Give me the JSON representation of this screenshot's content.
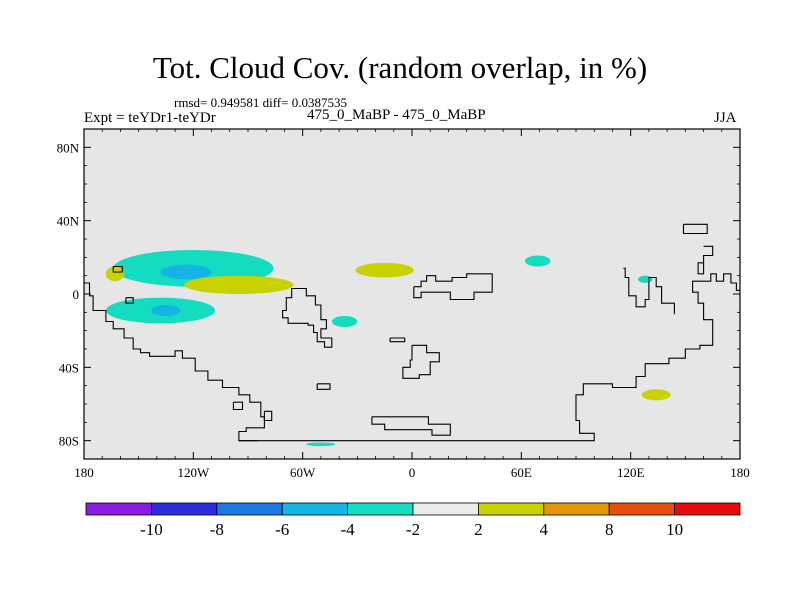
{
  "header": {
    "title": "Tot. Cloud Cov. (random overlap, in %)",
    "stats": "rmsd= 0.949581 diff= 0.0387535",
    "expt": "Expt = teYDr1-teYDr",
    "subtitle": "475_0_MaBP - 475_0_MaBP",
    "season": "JJA"
  },
  "chart_data": {
    "type": "heatmap",
    "title": "Tot. Cloud Cov. (random overlap, in %)",
    "projection": "cylindrical-equidistant",
    "xlim": [
      -180,
      180
    ],
    "ylim": [
      -90,
      90
    ],
    "x_ticks": [
      {
        "value": -180,
        "label": "180"
      },
      {
        "value": -120,
        "label": "120W"
      },
      {
        "value": -60,
        "label": "60W"
      },
      {
        "value": 0,
        "label": "0"
      },
      {
        "value": 60,
        "label": "60E"
      },
      {
        "value": 120,
        "label": "120E"
      },
      {
        "value": 180,
        "label": "180"
      }
    ],
    "y_ticks": [
      {
        "value": 80,
        "label": "80N"
      },
      {
        "value": 40,
        "label": "40N"
      },
      {
        "value": 0,
        "label": "0"
      },
      {
        "value": -40,
        "label": "40S"
      },
      {
        "value": -80,
        "label": "80S"
      }
    ],
    "background_color": "#e6e6e6",
    "colorbar": {
      "bins": [
        {
          "lo": null,
          "hi": -10,
          "color": "#8a1ee0"
        },
        {
          "lo": -10,
          "hi": -8,
          "color": "#2c2ce0"
        },
        {
          "lo": -8,
          "hi": -6,
          "color": "#1e78e6"
        },
        {
          "lo": -6,
          "hi": -4,
          "color": "#14b4e6"
        },
        {
          "lo": -4,
          "hi": -2,
          "color": "#14dcc0"
        },
        {
          "lo": -2,
          "hi": 2,
          "color": "#ebebeb"
        },
        {
          "lo": 2,
          "hi": 4,
          "color": "#c8d200"
        },
        {
          "lo": 4,
          "hi": 8,
          "color": "#e6960a"
        },
        {
          "lo": 8,
          "hi": 10,
          "color": "#e6500a"
        },
        {
          "lo": 10,
          "hi": null,
          "color": "#e60a0a"
        }
      ],
      "labels": [
        "-10",
        "-8",
        "-6",
        "-4",
        "-2",
        "2",
        "4",
        "8",
        "10"
      ]
    },
    "anomaly_regions": [
      {
        "name": "central-pacific-tropical-north",
        "center": [
          -120,
          14
        ],
        "extent": [
          44,
          10
        ],
        "value": -4
      },
      {
        "name": "central-pacific-tropical-north-core",
        "center": [
          -124,
          12
        ],
        "extent": [
          14,
          4
        ],
        "value": -6
      },
      {
        "name": "east-pacific-south",
        "center": [
          -138,
          -9
        ],
        "extent": [
          30,
          7
        ],
        "value": -4
      },
      {
        "name": "east-pacific-south-core",
        "center": [
          -135,
          -9
        ],
        "extent": [
          8,
          3
        ],
        "value": -6
      },
      {
        "name": "west-pacific-north-patch",
        "center": [
          -163,
          11
        ],
        "extent": [
          5,
          4
        ],
        "value": 3
      },
      {
        "name": "central-pacific-equatorial",
        "center": [
          -95,
          5
        ],
        "extent": [
          30,
          5
        ],
        "value": 3
      },
      {
        "name": "central-atlantic-north",
        "center": [
          -15,
          13
        ],
        "extent": [
          16,
          4
        ],
        "value": 3
      },
      {
        "name": "south-atlantic-subtropical",
        "center": [
          -37,
          -15
        ],
        "extent": [
          7,
          3
        ],
        "value": -3
      },
      {
        "name": "north-africa",
        "center": [
          69,
          18
        ],
        "extent": [
          7,
          3
        ],
        "value": -3
      },
      {
        "name": "west-pacific-subtropics",
        "center": [
          128,
          8
        ],
        "extent": [
          4,
          2
        ],
        "value": -3
      },
      {
        "name": "australia-south",
        "center": [
          134,
          -55
        ],
        "extent": [
          8,
          3
        ],
        "value": 3
      },
      {
        "name": "southern-ocean-arc",
        "center": [
          -50,
          -82
        ],
        "extent": [
          8,
          1
        ],
        "value": -3
      }
    ],
    "land_outlines": [
      {
        "name": "north-america-pacific-coast",
        "coastline": [
          [
            -180,
            6
          ],
          [
            -177,
            6
          ],
          [
            -177,
            -1
          ],
          [
            -175,
            -1
          ],
          [
            -175,
            -9
          ],
          [
            -168,
            -9
          ],
          [
            -168,
            -15
          ],
          [
            -164,
            -15
          ],
          [
            -164,
            -19
          ],
          [
            -158,
            -19
          ],
          [
            -158,
            -24
          ],
          [
            -153,
            -24
          ],
          [
            -153,
            -30
          ],
          [
            -149,
            -30
          ],
          [
            -149,
            -32
          ],
          [
            -144,
            -32
          ],
          [
            -144,
            -34
          ],
          [
            -130,
            -34
          ],
          [
            -130,
            -31
          ],
          [
            -126,
            -31
          ],
          [
            -126,
            -35
          ],
          [
            -119,
            -35
          ],
          [
            -119,
            -42
          ],
          [
            -112,
            -42
          ],
          [
            -112,
            -47
          ],
          [
            -104,
            -47
          ],
          [
            -104,
            -51
          ],
          [
            -95,
            -51
          ],
          [
            -95,
            -55
          ],
          [
            -89,
            -55
          ],
          [
            -89,
            -59
          ],
          [
            -83,
            -59
          ],
          [
            -83,
            -67
          ],
          [
            -81,
            -67
          ],
          [
            -81,
            -73
          ],
          [
            -91,
            -73
          ],
          [
            -91,
            -75
          ],
          [
            -95,
            -75
          ],
          [
            -95,
            -80
          ],
          [
            -85,
            -80
          ]
        ]
      },
      {
        "name": "central-america",
        "coastline": [
          [
            -62,
            -16
          ],
          [
            -57,
            -16
          ],
          [
            -57,
            -17
          ],
          [
            -54,
            -17
          ],
          [
            -54,
            -21
          ],
          [
            -52,
            -21
          ],
          [
            -52,
            -26
          ],
          [
            -48,
            -26
          ],
          [
            -48,
            -29
          ],
          [
            -44,
            -29
          ],
          [
            -44,
            -24
          ],
          [
            -50,
            -24
          ],
          [
            -50,
            -19
          ],
          [
            -47,
            -19
          ],
          [
            -47,
            -14
          ],
          [
            -50,
            -14
          ],
          [
            -50,
            -6
          ],
          [
            -53,
            -6
          ],
          [
            -53,
            -1
          ],
          [
            -58,
            -1
          ],
          [
            -58,
            3
          ],
          [
            -66,
            3
          ],
          [
            -66,
            -2
          ],
          [
            -69,
            -2
          ],
          [
            -69,
            -9
          ],
          [
            -71,
            -9
          ],
          [
            -71,
            -13
          ],
          [
            -68,
            -13
          ],
          [
            -68,
            -16
          ],
          [
            -62,
            -16
          ]
        ]
      },
      {
        "name": "atlantic-islands",
        "coastline": [
          [
            -12,
            -24
          ],
          [
            -12,
            -26
          ],
          [
            -4,
            -26
          ],
          [
            -4,
            -24
          ],
          [
            -12,
            -24
          ]
        ]
      },
      {
        "name": "southern-atlantic-island",
        "coastline": [
          [
            -52,
            -49
          ],
          [
            -52,
            -52
          ],
          [
            -45,
            -52
          ],
          [
            -45,
            -49
          ],
          [
            -52,
            -49
          ]
        ]
      },
      {
        "name": "west-europe",
        "coastline": [
          [
            1,
            4
          ],
          [
            5,
            4
          ],
          [
            5,
            7
          ],
          [
            8,
            7
          ],
          [
            8,
            10
          ],
          [
            13,
            10
          ],
          [
            13,
            7
          ],
          [
            22,
            7
          ],
          [
            22,
            9
          ],
          [
            30,
            9
          ],
          [
            30,
            11
          ],
          [
            44,
            11
          ],
          [
            44,
            1
          ],
          [
            34,
            1
          ],
          [
            34,
            -3
          ],
          [
            21,
            -3
          ],
          [
            21,
            1
          ],
          [
            5,
            1
          ],
          [
            5,
            -2
          ],
          [
            1,
            -2
          ],
          [
            1,
            4
          ]
        ]
      },
      {
        "name": "africa-south",
        "coastline": [
          [
            0,
            -28
          ],
          [
            8,
            -28
          ],
          [
            8,
            -32
          ],
          [
            15,
            -32
          ],
          [
            15,
            -37
          ],
          [
            10,
            -37
          ],
          [
            10,
            -44
          ],
          [
            4,
            -44
          ],
          [
            4,
            -46
          ],
          [
            -5,
            -46
          ],
          [
            -5,
            -40
          ],
          [
            -1,
            -40
          ],
          [
            -1,
            -36
          ],
          [
            0,
            -36
          ],
          [
            0,
            -28
          ]
        ]
      },
      {
        "name": "antarctic-shelf",
        "coastline": [
          [
            -22,
            -67
          ],
          [
            -22,
            -71
          ],
          [
            -15,
            -71
          ],
          [
            -15,
            -74
          ],
          [
            11,
            -74
          ],
          [
            11,
            -77
          ],
          [
            21,
            -77
          ],
          [
            21,
            -71
          ],
          [
            9,
            -71
          ],
          [
            9,
            -67
          ],
          [
            -22,
            -67
          ]
        ]
      },
      {
        "name": "antarctica-long",
        "coastline": [
          [
            -95,
            -80
          ],
          [
            100,
            -80
          ],
          [
            100,
            -76
          ],
          [
            92,
            -76
          ],
          [
            92,
            -69
          ],
          [
            90,
            -69
          ],
          [
            90,
            -55
          ],
          [
            94,
            -55
          ],
          [
            94,
            -49
          ],
          [
            110,
            -49
          ],
          [
            110,
            -51
          ],
          [
            123,
            -51
          ],
          [
            123,
            -45
          ],
          [
            128,
            -45
          ],
          [
            128,
            -38
          ],
          [
            141,
            -38
          ],
          [
            141,
            -35
          ],
          [
            150,
            -35
          ],
          [
            150,
            -30
          ],
          [
            158,
            -30
          ],
          [
            158,
            -28
          ],
          [
            165,
            -28
          ],
          [
            165,
            -14
          ],
          [
            160,
            -14
          ],
          [
            160,
            -5
          ],
          [
            157,
            -5
          ],
          [
            157,
            1
          ],
          [
            154,
            1
          ],
          [
            154,
            7
          ],
          [
            164,
            7
          ],
          [
            164,
            11
          ],
          [
            167,
            11
          ],
          [
            167,
            7
          ],
          [
            171,
            7
          ],
          [
            171,
            11
          ],
          [
            175,
            11
          ],
          [
            175,
            6
          ],
          [
            178,
            6
          ],
          [
            178,
            2
          ],
          [
            180,
            2
          ]
        ]
      },
      {
        "name": "east-asia-islands",
        "coastline": [
          [
            116,
            14
          ],
          [
            117,
            14
          ],
          [
            117,
            9
          ],
          [
            119,
            9
          ],
          [
            119,
            -1
          ],
          [
            123,
            -1
          ],
          [
            123,
            -7
          ],
          [
            128,
            -7
          ],
          [
            128,
            -3
          ],
          [
            130,
            -3
          ],
          [
            130,
            9
          ],
          [
            134,
            9
          ],
          [
            134,
            4
          ],
          [
            137,
            4
          ],
          [
            137,
            -5
          ],
          [
            144,
            -5
          ],
          [
            144,
            -11
          ]
        ]
      },
      {
        "name": "north-asia-peninsula",
        "coastline": [
          [
            149,
            38
          ],
          [
            149,
            33
          ],
          [
            162,
            33
          ],
          [
            162,
            38
          ],
          [
            149,
            38
          ]
        ]
      },
      {
        "name": "indian-peninsula",
        "coastline": [
          [
            160,
            26
          ],
          [
            165,
            26
          ],
          [
            165,
            21
          ],
          [
            160,
            21
          ],
          [
            160,
            17
          ],
          [
            157,
            17
          ],
          [
            157,
            11
          ],
          [
            160,
            11
          ],
          [
            160,
            21
          ]
        ]
      },
      {
        "name": "small-pacific-island-1",
        "coastline": [
          [
            -164,
            15
          ],
          [
            -159,
            15
          ],
          [
            -159,
            12
          ],
          [
            -164,
            12
          ],
          [
            -164,
            15
          ]
        ]
      },
      {
        "name": "small-pacific-island-2",
        "coastline": [
          [
            -157,
            -2
          ],
          [
            -153,
            -2
          ],
          [
            -153,
            -5
          ],
          [
            -157,
            -5
          ],
          [
            -157,
            -2
          ]
        ]
      },
      {
        "name": "small-atlantic-island-west",
        "coastline": [
          [
            -98,
            -59
          ],
          [
            -98,
            -63
          ],
          [
            -93,
            -63
          ],
          [
            -93,
            -59
          ],
          [
            -98,
            -59
          ]
        ]
      },
      {
        "name": "small-atlantic-island-east",
        "coastline": [
          [
            -81,
            -64
          ],
          [
            -81,
            -69
          ],
          [
            -77,
            -69
          ],
          [
            -77,
            -64
          ],
          [
            -81,
            -64
          ]
        ]
      }
    ]
  }
}
